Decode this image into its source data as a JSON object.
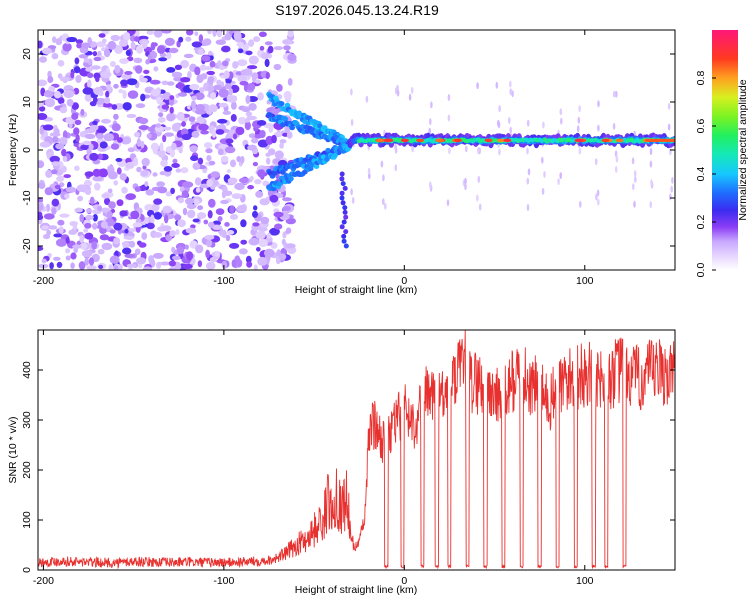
{
  "title": "S197.2026.045.13.24.R19",
  "chart_data": [
    {
      "type": "heatmap",
      "xlabel": "Height of straight line (km)",
      "ylabel": "Frequency (Hz)",
      "xlim": [
        -203,
        150
      ],
      "ylim": [
        -25,
        25
      ],
      "xticks": [
        -200,
        -100,
        0,
        100
      ],
      "yticks": [
        -20,
        -10,
        0,
        10,
        20
      ],
      "colorbar": {
        "label": "Normalized spectral amplitude",
        "range": [
          0,
          1
        ],
        "ticks": [
          "0.0",
          "0.2",
          "0.4",
          "0.6",
          "0.8"
        ],
        "tick_values": [
          0.0,
          0.2,
          0.4,
          0.6,
          0.8
        ]
      },
      "features": {
        "carrier_frequency_hz": 2,
        "noise_region_km": [
          -203,
          -70
        ],
        "doppler_fan_km": [
          -75,
          -30
        ],
        "doppler_fan_start_hz": [
          -8,
          11
        ]
      }
    },
    {
      "type": "line",
      "xlabel": "Height of straight line (km)",
      "ylabel": "SNR (10 * v/v)",
      "xlim": [
        -203,
        150
      ],
      "ylim": [
        0,
        480
      ],
      "xticks": [
        -200,
        -100,
        0,
        100
      ],
      "yticks": [
        0,
        100,
        200,
        300,
        400
      ],
      "color": "#e8312f",
      "series": [
        {
          "name": "SNR",
          "x": [
            -203,
            -190,
            -180,
            -170,
            -160,
            -150,
            -140,
            -130,
            -120,
            -110,
            -100,
            -90,
            -80,
            -75,
            -70,
            -65,
            -60,
            -55,
            -50,
            -45,
            -42,
            -40,
            -38,
            -35,
            -32,
            -30,
            -28,
            -25,
            -22,
            -20,
            -18,
            -15,
            -12,
            -10,
            -8,
            -6,
            -4,
            -2,
            0,
            2,
            4,
            6,
            8,
            10,
            12,
            14,
            16,
            18,
            20,
            22,
            24,
            26,
            28,
            30,
            32,
            34,
            36,
            38,
            40,
            45,
            50,
            55,
            60,
            65,
            70,
            75,
            80,
            85,
            90,
            95,
            100,
            105,
            110,
            115,
            120,
            125,
            130,
            135,
            140,
            145,
            150
          ],
          "y": [
            15,
            18,
            16,
            15,
            14,
            17,
            16,
            15,
            16,
            15,
            15,
            16,
            18,
            20,
            25,
            35,
            50,
            60,
            80,
            100,
            140,
            110,
            160,
            120,
            150,
            80,
            40,
            60,
            100,
            240,
            300,
            280,
            260,
            250,
            270,
            290,
            300,
            310,
            320,
            310,
            300,
            290,
            320,
            330,
            350,
            340,
            360,
            330,
            350,
            340,
            370,
            360,
            380,
            390,
            400,
            410,
            380,
            370,
            380,
            360,
            350,
            340,
            380,
            390,
            370,
            360,
            330,
            360,
            380,
            380,
            390,
            390,
            380,
            390,
            400,
            390,
            380,
            390,
            395,
            395,
            390
          ]
        }
      ],
      "dropouts_km": [
        -10,
        -1,
        10,
        18,
        25,
        35,
        45,
        55,
        65,
        75,
        85,
        95,
        105,
        112,
        122
      ]
    }
  ]
}
